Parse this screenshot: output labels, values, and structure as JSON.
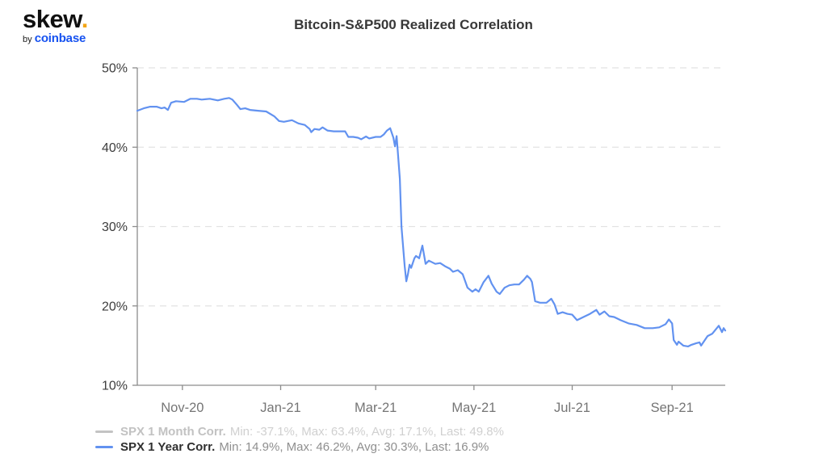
{
  "brand": {
    "logo_text": "skew",
    "logo_dot": ".",
    "byline_prefix": "by ",
    "byline_brand": "coinbase",
    "logo_dot_color": "#f2a516",
    "coinbase_blue": "#1652f0"
  },
  "header": {
    "title": "Bitcoin-S&P500 Realized Correlation"
  },
  "chart_data": {
    "type": "line",
    "title": "Bitcoin-S&P500 Realized Correlation",
    "xlabel": "",
    "ylabel": "",
    "grid": {
      "horizontal": "dashed",
      "color": "#e2e2e2"
    },
    "axis_color": "#8c8c8c",
    "tick_label_color_y": "#3d3d3d",
    "tick_label_color_x": "#757575",
    "legend_position": "bottom-left",
    "x_axis": {
      "range": [
        "2020-10-04",
        "2021-10-04"
      ],
      "ticks": [
        {
          "label": "Nov-20",
          "date": "2020-11-01"
        },
        {
          "label": "Jan-21",
          "date": "2021-01-01"
        },
        {
          "label": "Mar-21",
          "date": "2021-03-01"
        },
        {
          "label": "May-21",
          "date": "2021-05-01"
        },
        {
          "label": "Jul-21",
          "date": "2021-07-01"
        },
        {
          "label": "Sep-21",
          "date": "2021-09-01"
        }
      ]
    },
    "y_axis": {
      "min": 10,
      "max": 50,
      "unit": "%",
      "ticks": [
        {
          "label": "50%",
          "value": 50
        },
        {
          "label": "40%",
          "value": 40
        },
        {
          "label": "30%",
          "value": 30
        },
        {
          "label": "20%",
          "value": 20
        },
        {
          "label": "10%",
          "value": 10
        }
      ]
    },
    "series": [
      {
        "name": "SPX 1 Month Corr.",
        "stats": "Min: -37.1%, Max: 63.4%, Avg: 17.1%, Last: 49.8%",
        "color": "#c3c3c3",
        "visible": false,
        "points": []
      },
      {
        "name": "SPX 1 Year Corr.",
        "stats": "Min: 14.9%, Max: 46.2%, Avg: 30.3%, Last: 16.9%",
        "color": "#6292f0",
        "visible": true,
        "points": [
          [
            "2020-10-04",
            44.6
          ],
          [
            "2020-10-08",
            44.9
          ],
          [
            "2020-10-12",
            45.1
          ],
          [
            "2020-10-16",
            45.1
          ],
          [
            "2020-10-19",
            44.9
          ],
          [
            "2020-10-21",
            45.0
          ],
          [
            "2020-10-23",
            44.7
          ],
          [
            "2020-10-25",
            45.6
          ],
          [
            "2020-10-28",
            45.8
          ],
          [
            "2020-11-02",
            45.7
          ],
          [
            "2020-11-06",
            46.1
          ],
          [
            "2020-11-10",
            46.1
          ],
          [
            "2020-11-13",
            46.0
          ],
          [
            "2020-11-18",
            46.1
          ],
          [
            "2020-11-23",
            45.9
          ],
          [
            "2020-11-27",
            46.1
          ],
          [
            "2020-11-30",
            46.2
          ],
          [
            "2020-12-02",
            46.0
          ],
          [
            "2020-12-05",
            45.3
          ],
          [
            "2020-12-07",
            44.8
          ],
          [
            "2020-12-10",
            44.9
          ],
          [
            "2020-12-13",
            44.7
          ],
          [
            "2020-12-18",
            44.6
          ],
          [
            "2020-12-23",
            44.5
          ],
          [
            "2020-12-28",
            43.9
          ],
          [
            "2020-12-31",
            43.3
          ],
          [
            "2021-01-03",
            43.2
          ],
          [
            "2021-01-08",
            43.4
          ],
          [
            "2021-01-12",
            43.0
          ],
          [
            "2021-01-16",
            42.8
          ],
          [
            "2021-01-19",
            42.3
          ],
          [
            "2021-01-20",
            41.9
          ],
          [
            "2021-01-22",
            42.3
          ],
          [
            "2021-01-25",
            42.2
          ],
          [
            "2021-01-27",
            42.5
          ],
          [
            "2021-01-30",
            42.1
          ],
          [
            "2021-02-03",
            42.0
          ],
          [
            "2021-02-07",
            42.0
          ],
          [
            "2021-02-10",
            42.0
          ],
          [
            "2021-02-12",
            41.3
          ],
          [
            "2021-02-15",
            41.3
          ],
          [
            "2021-02-18",
            41.2
          ],
          [
            "2021-02-20",
            41.0
          ],
          [
            "2021-02-23",
            41.35
          ],
          [
            "2021-02-25",
            41.1
          ],
          [
            "2021-03-01",
            41.3
          ],
          [
            "2021-03-04",
            41.3
          ],
          [
            "2021-03-06",
            41.6
          ],
          [
            "2021-03-08",
            42.1
          ],
          [
            "2021-03-10",
            42.4
          ],
          [
            "2021-03-12",
            41.2
          ],
          [
            "2021-03-13",
            40.1
          ],
          [
            "2021-03-14",
            41.4
          ],
          [
            "2021-03-16",
            36.0
          ],
          [
            "2021-03-17",
            30.0
          ],
          [
            "2021-03-19",
            25.0
          ],
          [
            "2021-03-20",
            23.1
          ],
          [
            "2021-03-21",
            24.0
          ],
          [
            "2021-03-22",
            25.2
          ],
          [
            "2021-03-23",
            24.8
          ],
          [
            "2021-03-25",
            26.0
          ],
          [
            "2021-03-26",
            26.3
          ],
          [
            "2021-03-28",
            26.0
          ],
          [
            "2021-03-30",
            27.6
          ],
          [
            "2021-04-01",
            25.3
          ],
          [
            "2021-04-03",
            25.7
          ],
          [
            "2021-04-07",
            25.3
          ],
          [
            "2021-04-10",
            25.4
          ],
          [
            "2021-04-13",
            25.0
          ],
          [
            "2021-04-16",
            24.7
          ],
          [
            "2021-04-18",
            24.3
          ],
          [
            "2021-04-21",
            24.5
          ],
          [
            "2021-04-24",
            24.0
          ],
          [
            "2021-04-27",
            22.3
          ],
          [
            "2021-04-30",
            21.8
          ],
          [
            "2021-05-02",
            22.1
          ],
          [
            "2021-05-04",
            21.8
          ],
          [
            "2021-05-07",
            23.0
          ],
          [
            "2021-05-10",
            23.8
          ],
          [
            "2021-05-12",
            22.8
          ],
          [
            "2021-05-15",
            21.8
          ],
          [
            "2021-05-17",
            21.5
          ],
          [
            "2021-05-20",
            22.3
          ],
          [
            "2021-05-23",
            22.6
          ],
          [
            "2021-05-26",
            22.7
          ],
          [
            "2021-05-29",
            22.7
          ],
          [
            "2021-06-01",
            23.3
          ],
          [
            "2021-06-03",
            23.8
          ],
          [
            "2021-06-05",
            23.4
          ],
          [
            "2021-06-06",
            23.0
          ],
          [
            "2021-06-08",
            20.6
          ],
          [
            "2021-06-11",
            20.4
          ],
          [
            "2021-06-15",
            20.4
          ],
          [
            "2021-06-18",
            20.9
          ],
          [
            "2021-06-20",
            20.2
          ],
          [
            "2021-06-22",
            19.0
          ],
          [
            "2021-06-25",
            19.2
          ],
          [
            "2021-06-28",
            19.0
          ],
          [
            "2021-07-01",
            18.9
          ],
          [
            "2021-07-04",
            18.2
          ],
          [
            "2021-07-09",
            18.7
          ],
          [
            "2021-07-12",
            19.0
          ],
          [
            "2021-07-16",
            19.5
          ],
          [
            "2021-07-18",
            18.9
          ],
          [
            "2021-07-21",
            19.3
          ],
          [
            "2021-07-24",
            18.7
          ],
          [
            "2021-07-27",
            18.6
          ],
          [
            "2021-07-31",
            18.2
          ],
          [
            "2021-08-05",
            17.8
          ],
          [
            "2021-08-10",
            17.6
          ],
          [
            "2021-08-15",
            17.2
          ],
          [
            "2021-08-20",
            17.2
          ],
          [
            "2021-08-24",
            17.3
          ],
          [
            "2021-08-28",
            17.7
          ],
          [
            "2021-08-30",
            18.3
          ],
          [
            "2021-09-01",
            17.8
          ],
          [
            "2021-09-02",
            15.7
          ],
          [
            "2021-09-04",
            15.1
          ],
          [
            "2021-09-05",
            15.5
          ],
          [
            "2021-09-08",
            15.0
          ],
          [
            "2021-09-11",
            14.9
          ],
          [
            "2021-09-13",
            15.1
          ],
          [
            "2021-09-16",
            15.3
          ],
          [
            "2021-09-18",
            15.4
          ],
          [
            "2021-09-19",
            15.0
          ],
          [
            "2021-09-21",
            15.6
          ],
          [
            "2021-09-23",
            16.2
          ],
          [
            "2021-09-26",
            16.5
          ],
          [
            "2021-09-28",
            17.0
          ],
          [
            "2021-09-30",
            17.5
          ],
          [
            "2021-10-02",
            16.7
          ],
          [
            "2021-10-03",
            17.2
          ],
          [
            "2021-10-04",
            16.9
          ]
        ]
      }
    ]
  }
}
